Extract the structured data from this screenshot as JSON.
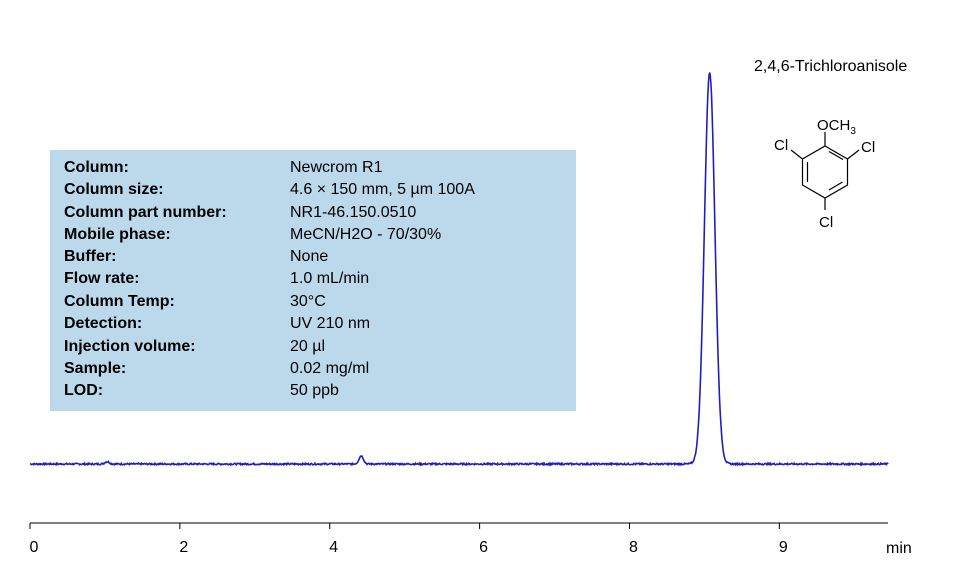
{
  "chart_data": {
    "type": "line",
    "xlabel": "min",
    "x_ticks": [
      "0",
      "2",
      "4",
      "6",
      "8",
      "9"
    ],
    "xlim": [
      0,
      11.45
    ],
    "ylim": [
      -0.05,
      1.05
    ],
    "grid": false,
    "legend": "none",
    "line_color": "#1f1fbf",
    "baseline": 0,
    "peaks": [
      {
        "time": 1.03,
        "height": 0.006,
        "width": 0.06
      },
      {
        "time": 4.42,
        "height": 0.021,
        "width": 0.06
      },
      {
        "time": 9.07,
        "height": 1.0,
        "width": 0.14,
        "label": "2,4,6-Trichloroanisole"
      }
    ],
    "series": [
      {
        "x": [
          0.0,
          1.0,
          1.03,
          1.06,
          2.0,
          4.38,
          4.42,
          4.46,
          4.55,
          8.8,
          8.92,
          9.0,
          9.07,
          9.15,
          9.25,
          9.4,
          10.0,
          11.45
        ],
        "y": [
          0.0,
          0.004,
          0.006,
          0.004,
          0.0,
          0.015,
          0.021,
          0.012,
          0.0,
          0.0,
          0.25,
          0.8,
          1.0,
          0.75,
          0.22,
          0.01,
          0.0,
          0.0
        ]
      }
    ]
  },
  "compound": {
    "name": "2,4,6-Trichloroanisole",
    "structure": {
      "top_group": "OCH",
      "top_group_sub": "3",
      "substituent": "Cl"
    }
  },
  "method": {
    "rows": [
      {
        "label": "Column:",
        "value": "Newcrom R1"
      },
      {
        "label": "Column size:",
        "value": "4.6 × 150 mm, 5 µm  100A"
      },
      {
        "label": "Column part number:",
        "value": "NR1-46.150.0510"
      },
      {
        "label": "Mobile phase:",
        "value": "MeCN/H2O - 70/30%"
      },
      {
        "label": "Buffer:",
        "value": "None"
      },
      {
        "label": "Flow rate:",
        "value": "1.0 mL/min"
      },
      {
        "label": "Column Temp:",
        "value": "30°C"
      },
      {
        "label": "Detection:",
        "value": "UV 210 nm"
      },
      {
        "label": "Injection volume:",
        "value": "20 µl"
      },
      {
        "label": "Sample:",
        "value": "0.02 mg/ml"
      },
      {
        "label": "LOD:",
        "value": "50 ppb"
      }
    ]
  }
}
